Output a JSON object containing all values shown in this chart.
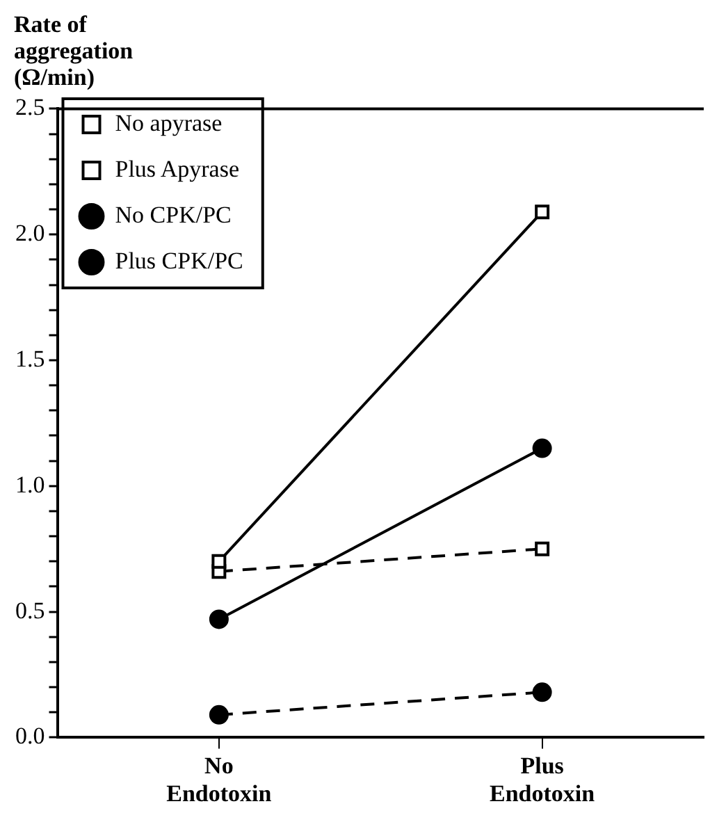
{
  "chart_data": {
    "type": "line",
    "ylabel": "Rate of aggregation (Ω/min)",
    "categories": [
      "No Endotoxin",
      "Plus Endotoxin"
    ],
    "series": [
      {
        "name": "No apyrase",
        "color": "#000000",
        "values": [
          0.7,
          2.09
        ],
        "marker": "square",
        "line_style": "solid"
      },
      {
        "name": "Plus Apyrase",
        "color": "#000000",
        "values": [
          0.66,
          0.75
        ],
        "marker": "square",
        "line_style": "dashed"
      },
      {
        "name": "No CPK/PC",
        "color": "#000000",
        "values": [
          0.47,
          1.15
        ],
        "marker": "circle",
        "line_style": "solid"
      },
      {
        "name": "Plus CPK/PC",
        "color": "#000000",
        "values": [
          0.09,
          0.18
        ],
        "marker": "circle",
        "line_style": "dashed"
      }
    ],
    "ylim": [
      0,
      2.5
    ],
    "yticks": [
      {
        "value": 0,
        "label": "0.0"
      },
      {
        "value": 0.1,
        "label": null
      },
      {
        "value": 0.2,
        "label": null
      },
      {
        "value": 0.3,
        "label": null
      },
      {
        "value": 0.4,
        "label": null
      },
      {
        "value": 0.5,
        "label": "0.5"
      },
      {
        "value": 0.6,
        "label": null
      },
      {
        "value": 0.7,
        "label": null
      },
      {
        "value": 0.8,
        "label": null
      },
      {
        "value": 0.9,
        "label": null
      },
      {
        "value": 1.0,
        "label": "1.0"
      },
      {
        "value": 1.1,
        "label": null
      },
      {
        "value": 1.2,
        "label": null
      },
      {
        "value": 1.3,
        "label": null
      },
      {
        "value": 1.4,
        "label": null
      },
      {
        "value": 1.5,
        "label": "1.5"
      },
      {
        "value": 1.6,
        "label": null
      },
      {
        "value": 1.7,
        "label": null
      },
      {
        "value": 1.8,
        "label": null
      },
      {
        "value": 1.9,
        "label": null
      },
      {
        "value": 2.0,
        "label": "2.0"
      },
      {
        "value": 2.1,
        "label": null
      },
      {
        "value": 2.2,
        "label": null
      },
      {
        "value": 2.3,
        "label": null
      },
      {
        "value": 2.4,
        "label": null
      },
      {
        "value": 2.5,
        "label": "2.5"
      }
    ],
    "grid": false,
    "legend": "top left"
  }
}
